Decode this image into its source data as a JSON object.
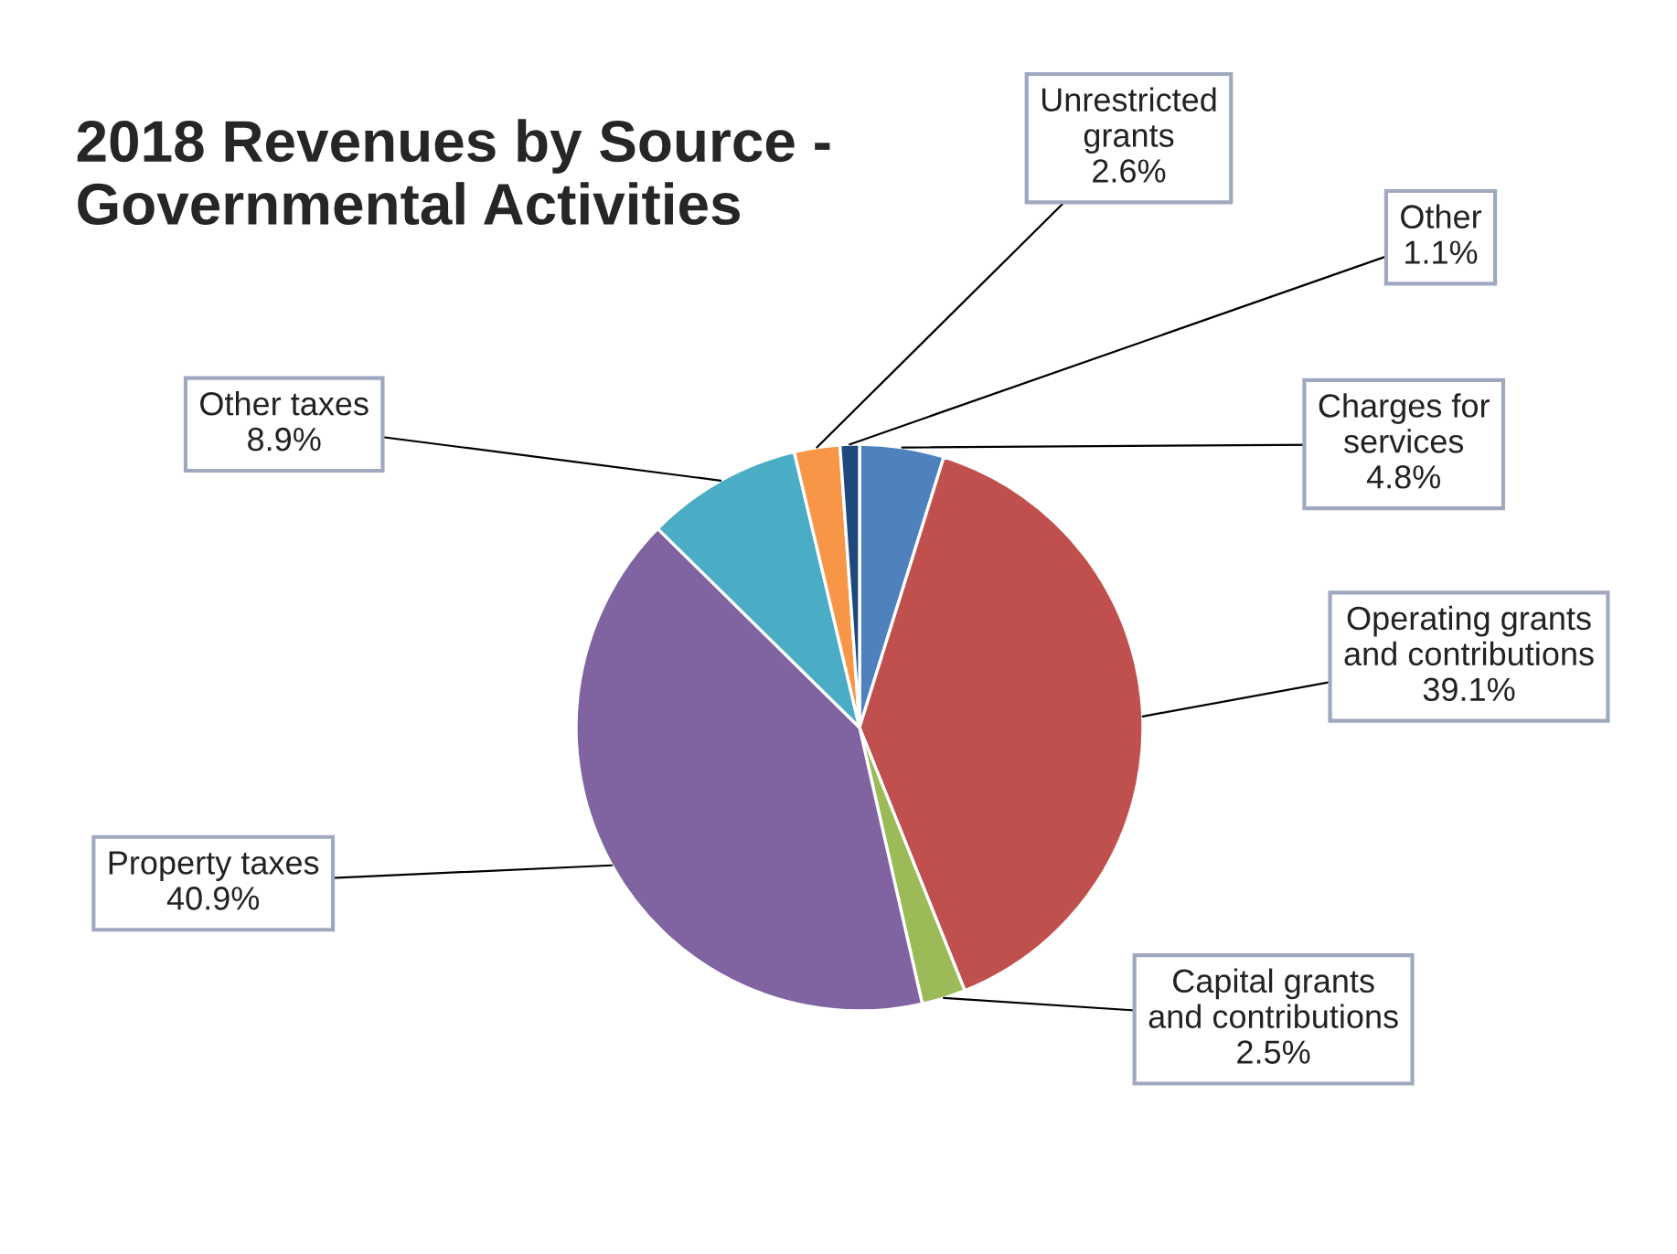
{
  "chart_data": {
    "type": "pie",
    "title": "2018 Revenues by Source -\nGovernmental Activities",
    "categories": [
      "Charges for services",
      "Operating grants and contributions",
      "Capital grants and contributions",
      "Property taxes",
      "Other taxes",
      "Unrestricted grants",
      "Other"
    ],
    "values": [
      4.8,
      39.1,
      2.5,
      40.9,
      8.9,
      2.6,
      1.1
    ],
    "value_labels": [
      "4.8%",
      "39.1%",
      "2.5%",
      "40.9%",
      "8.9%",
      "2.6%",
      "1.1%"
    ],
    "colors": [
      "#4f81bd",
      "#c0504d",
      "#9bbb59",
      "#8064a2",
      "#4bacc6",
      "#f79646",
      "#1f497d"
    ],
    "legend": false
  }
}
